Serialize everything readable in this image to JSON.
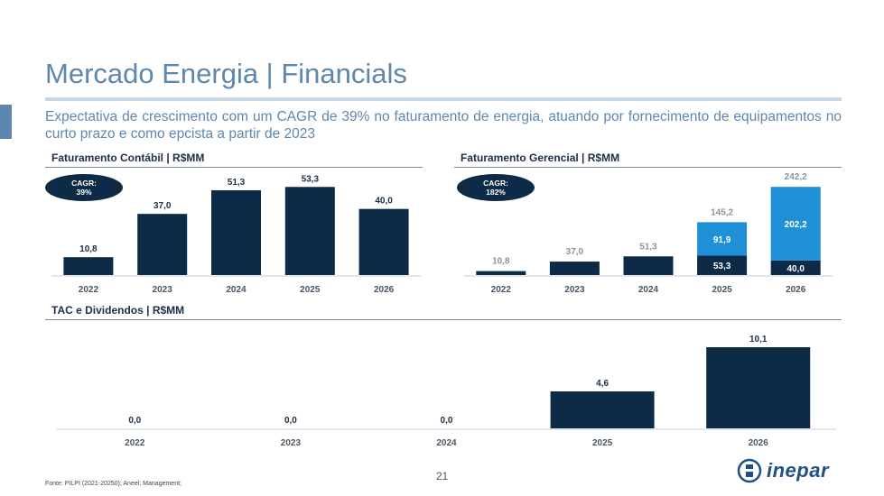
{
  "title": "Mercado Energia | Financials",
  "subtitle": "Expectativa de crescimento com um CAGR de 39% no faturamento de energia, atuando por fornecimento de equipamentos no curto prazo e como epcista a partir de 2023",
  "page_number": "21",
  "source": "Fonte: PILPI (2021-20250); Aneel; Management;",
  "logo": {
    "text": "inepar",
    "icon": "inepar-logo-icon"
  },
  "colors": {
    "dark_navy": "#0d2a46",
    "light_blue": "#1f8fd6",
    "title_blue": "#5f87ae"
  },
  "sections": {
    "contabil": {
      "title": "Faturamento Contábil | R$MM",
      "cagr_label": "CAGR:",
      "cagr_value": "39%"
    },
    "gerencial": {
      "title": "Faturamento Gerencial | R$MM",
      "cagr_label": "CAGR:",
      "cagr_value": "182%"
    },
    "tac": {
      "title": "TAC e Dividendos | R$MM"
    }
  },
  "chart_data": [
    {
      "id": "contabil",
      "type": "bar",
      "title": "Faturamento Contábil | R$MM",
      "categories": [
        "2022",
        "2023",
        "2024",
        "2025",
        "2026"
      ],
      "values": [
        10.8,
        37.0,
        51.3,
        53.3,
        40.0
      ],
      "labels": [
        "10,8",
        "37,0",
        "51,3",
        "53,3",
        "40,0"
      ],
      "ylim": [
        0,
        60
      ],
      "color": "#0d2a46"
    },
    {
      "id": "gerencial",
      "type": "stacked-bar",
      "title": "Faturamento Gerencial | R$MM",
      "categories": [
        "2022",
        "2023",
        "2024",
        "2025",
        "2026"
      ],
      "series": [
        {
          "values": [
            10.8,
            37.0,
            51.3,
            53.3,
            40.0
          ],
          "labels": [
            "10,8",
            "37,0",
            "51,3",
            "53,3",
            "40,0"
          ],
          "color": "#0d2a46"
        },
        {
          "values": [
            0,
            0,
            0,
            91.9,
            202.2
          ],
          "labels": [
            "",
            "",
            "",
            "91,9",
            "202,2"
          ],
          "color": "#1f8fd6"
        }
      ],
      "totals": [
        10.8,
        37.0,
        51.3,
        145.2,
        242.2
      ],
      "total_labels": [
        "10,8",
        "37,0",
        "51,3",
        "145,2",
        "242,2"
      ],
      "ylim": [
        0,
        260
      ]
    },
    {
      "id": "tac",
      "type": "bar",
      "title": "TAC e Dividendos | R$MM",
      "categories": [
        "2022",
        "2023",
        "2024",
        "2025",
        "2026"
      ],
      "values": [
        0.0,
        0.0,
        0.0,
        4.6,
        10.1
      ],
      "labels": [
        "0,0",
        "0,0",
        "0,0",
        "4,6",
        "10,1"
      ],
      "ylim": [
        0,
        11
      ],
      "color": "#0d2a46"
    }
  ]
}
